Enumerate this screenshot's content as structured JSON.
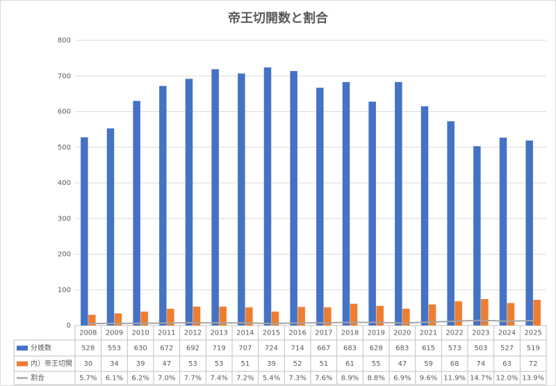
{
  "chart_data": {
    "type": "bar",
    "title": "帝王切開数と割合",
    "categories": [
      "2008",
      "2009",
      "2010",
      "2011",
      "2012",
      "2013",
      "2014",
      "2015",
      "2016",
      "2017",
      "2018",
      "2019",
      "2020",
      "2021",
      "2022",
      "2023",
      "2024",
      "2025"
    ],
    "series": [
      {
        "name": "分娩数",
        "color": "#4472c4",
        "values": [
          528,
          553,
          630,
          672,
          692,
          719,
          707,
          724,
          714,
          667,
          683,
          628,
          683,
          615,
          573,
          503,
          527,
          519
        ]
      },
      {
        "name": "内）帝王切開",
        "color": "#ed7d31",
        "values": [
          30,
          34,
          39,
          47,
          53,
          53,
          51,
          39,
          52,
          51,
          61,
          55,
          47,
          59,
          68,
          74,
          63,
          72
        ]
      },
      {
        "name": "割合",
        "color": "#a5a5a5",
        "type": "line",
        "values": [
          5.7,
          6.1,
          6.2,
          7.0,
          7.7,
          7.4,
          7.2,
          5.4,
          7.3,
          7.6,
          8.9,
          8.8,
          6.9,
          9.6,
          11.9,
          14.7,
          12.0,
          13.9
        ],
        "value_labels": [
          "5.7%",
          "6.1%",
          "6.2%",
          "7.0%",
          "7.7%",
          "7.4%",
          "7.2%",
          "5.4%",
          "7.3%",
          "7.6%",
          "8.9%",
          "8.8%",
          "6.9%",
          "9.6%",
          "11.9%",
          "14.7%",
          "12.0%",
          "13.9%"
        ]
      }
    ],
    "ylim": [
      0,
      800
    ],
    "yticks": [
      0,
      100,
      200,
      300,
      400,
      500,
      600,
      700,
      800
    ],
    "grid": true
  }
}
